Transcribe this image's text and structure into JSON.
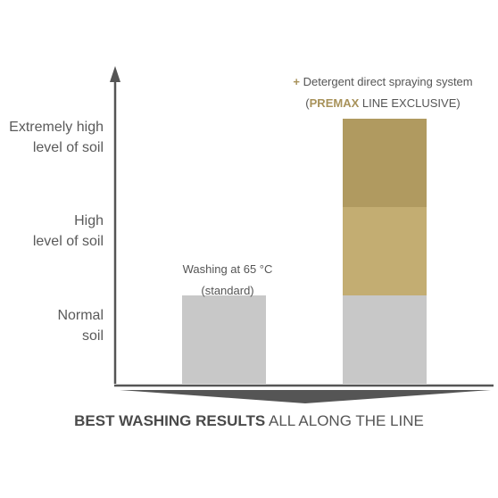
{
  "chart_data": {
    "type": "bar",
    "stacked": true,
    "y_levels": [
      {
        "lines": [
          "Normal",
          "soil"
        ]
      },
      {
        "lines": [
          "High",
          "level of soil"
        ]
      },
      {
        "lines": [
          "Extremely high",
          "level of soil"
        ]
      }
    ],
    "ylim": [
      0,
      3
    ],
    "bars": [
      {
        "segments": [
          {
            "from": 0,
            "to": 1,
            "color": "#c8c8c8"
          }
        ],
        "annotation": [
          "Washing at 65 °C",
          "(standard)"
        ]
      },
      {
        "segments": [
          {
            "from": 0,
            "to": 1,
            "color": "#c8c8c8"
          },
          {
            "from": 1,
            "to": 2,
            "color": "#c3ad72"
          },
          {
            "from": 2,
            "to": 3,
            "color": "#b09a60"
          }
        ],
        "annotation_plus": "+",
        "annotation_line1": "Detergent direct spraying system",
        "annotation_open": "(",
        "annotation_brand": "PREMAX",
        "annotation_rest": " LINE EXCLUSIVE)"
      }
    ],
    "axis_color": "#555555",
    "grid": false
  },
  "footer": {
    "bold": "BEST WASHING RESULTS",
    "rest": " ALL ALONG THE LINE"
  }
}
